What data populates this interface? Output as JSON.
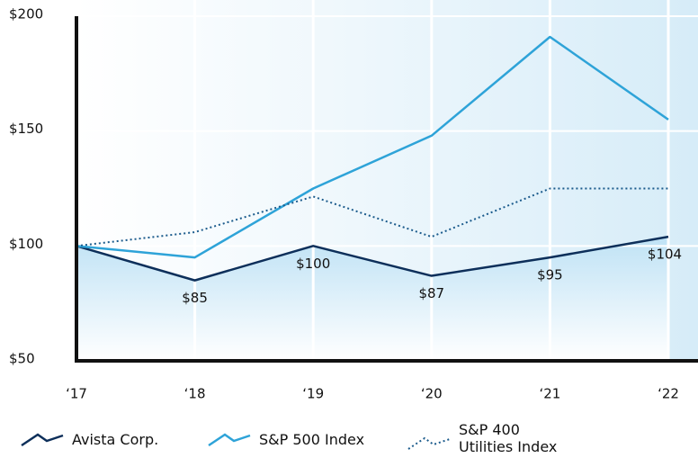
{
  "chart_data": {
    "type": "line",
    "categories": [
      "‘17",
      "‘18",
      "‘19",
      "‘20",
      "‘21",
      "‘22"
    ],
    "series": [
      {
        "name": "Avista Corp.",
        "color": "#0d2f5a",
        "style": "solid",
        "values": [
          100,
          85,
          100,
          87,
          95,
          104
        ],
        "value_labels": [
          null,
          "$85",
          "$100",
          "$87",
          "$95",
          "$104"
        ]
      },
      {
        "name": "S&P 500 Index",
        "color": "#2ea3d8",
        "style": "solid",
        "values": [
          100,
          95,
          125,
          148,
          191,
          155
        ]
      },
      {
        "name": "S&P 400 Utilities Index",
        "color": "#1b5b8c",
        "style": "dotted",
        "values": [
          100,
          106,
          121.5,
          104,
          125,
          125
        ]
      }
    ],
    "ylim": [
      50,
      200
    ],
    "yticks": [
      {
        "value": 50,
        "label": "$50"
      },
      {
        "value": 100,
        "label": "$100"
      },
      {
        "value": 150,
        "label": "$150"
      },
      {
        "value": 200,
        "label": "$200"
      }
    ],
    "grid": true
  }
}
